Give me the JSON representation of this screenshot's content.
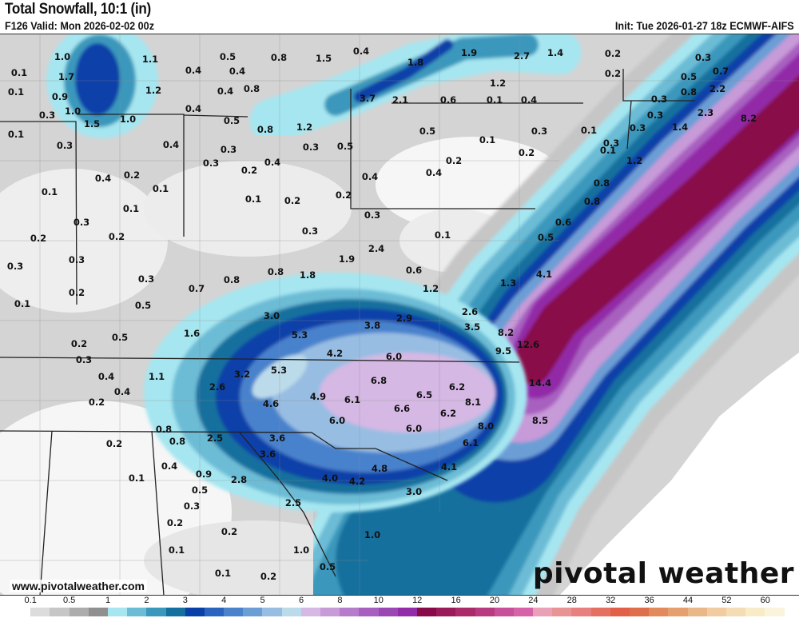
{
  "header": {
    "title": "Total Snowfall, 10:1 (in)",
    "valid": "F126 Valid: Mon 2026-02-02 00z",
    "init": "Init: Tue 2026-01-27 18z ECMWF-AIFS"
  },
  "footer": {
    "url": "www.pivotalweather.com",
    "logo": "pivotal weather"
  },
  "legend": {
    "ticks": [
      "0.1",
      "0.5",
      "1",
      "2",
      "3",
      "4",
      "5",
      "6",
      "8",
      "10",
      "12",
      "16",
      "20",
      "24",
      "28",
      "32",
      "36",
      "44",
      "52",
      "60"
    ],
    "colors": [
      "#ffffff",
      "#dcdcdc",
      "#c6c6c6",
      "#acacac",
      "#909090",
      "#a6e6f0",
      "#6cbcd6",
      "#3a98bc",
      "#14709e",
      "#0a3fa8",
      "#2a64c0",
      "#4a82cc",
      "#6c9ed6",
      "#98bde2",
      "#bcdbea",
      "#d6b8e4",
      "#c79ad8",
      "#b67ccc",
      "#a860c0",
      "#9c48b4",
      "#922ca8",
      "#880a48",
      "#9a1a5a",
      "#aa2a6a",
      "#b83a80",
      "#c8509a",
      "#d862a8",
      "#eaa0b6",
      "#e89494",
      "#e88080",
      "#e47062",
      "#e26048",
      "#de6e4c",
      "#e28a5c",
      "#e6a070",
      "#eab888",
      "#f0cca0",
      "#f4dcb4",
      "#f8ecc8",
      "#fbf4dc"
    ]
  },
  "map": {
    "labels": [
      "1.0",
      "0.1",
      "1.7",
      "0.1",
      "0.9",
      "1.0",
      "0.3",
      "1.5",
      "1.0",
      "0.1",
      "0.3",
      "1.1",
      "1.2",
      "0.4",
      "0.4",
      "0.5",
      "0.4",
      "0.4",
      "0.8",
      "0.8",
      "1.5",
      "0.4",
      "1.8",
      "1.9",
      "2.7",
      "1.4",
      "0.2",
      "0.2",
      "0.3",
      "0.7",
      "0.5",
      "0.8",
      "2.2",
      "0.3",
      "0.3",
      "0.3",
      "1.4",
      "2.3",
      "8.2",
      "1.2",
      "3.7",
      "2.1",
      "0.6",
      "0.1",
      "0.4",
      "0.5",
      "0.8",
      "1.2",
      "0.5",
      "0.1",
      "0.3",
      "0.1",
      "0.1",
      "0.3",
      "0.4",
      "0.3",
      "0.3",
      "0.3",
      "0.5",
      "0.2",
      "0.4",
      "0.2",
      "0.2",
      "0.4",
      "0.4",
      "1.2",
      "0.8",
      "0.6",
      "0.8",
      "0.4",
      "0.2",
      "0.1",
      "0.1",
      "0.1",
      "0.1",
      "0.2",
      "0.2",
      "0.3",
      "0.3",
      "0.2",
      "0.2",
      "0.1",
      "0.5",
      "0.3",
      "0.3",
      "0.3",
      "0.8",
      "1.9",
      "2.4",
      "0.6",
      "1.2",
      "4.1",
      "1.3",
      "1.8",
      "0.3",
      "0.8",
      "0.7",
      "0.2",
      "0.1",
      "0.5",
      "3.0",
      "5.3",
      "3.8",
      "2.9",
      "2.6",
      "3.5",
      "8.2",
      "9.5",
      "12.6",
      "1.6",
      "0.5",
      "0.2",
      "0.3",
      "4.2",
      "6.0",
      "1.1",
      "3.2",
      "5.3",
      "0.4",
      "0.4",
      "0.2",
      "2.6",
      "4.6",
      "4.9",
      "6.1",
      "6.8",
      "6.5",
      "6.2",
      "6.6",
      "8.1",
      "6.2",
      "14.4",
      "8.0",
      "8.5",
      "6.0",
      "6.0",
      "6.1",
      "0.8",
      "0.8",
      "2.5",
      "3.6",
      "3.6",
      "0.2",
      "0.4",
      "0.9",
      "2.8",
      "0.1",
      "0.5",
      "4.0",
      "4.2",
      "4.8",
      "4.1",
      "0.3",
      "3.0",
      "2.5",
      "0.2",
      "0.2",
      "1.0",
      "1.0",
      "0.1",
      "0.5",
      "0.1",
      "0.2"
    ]
  }
}
